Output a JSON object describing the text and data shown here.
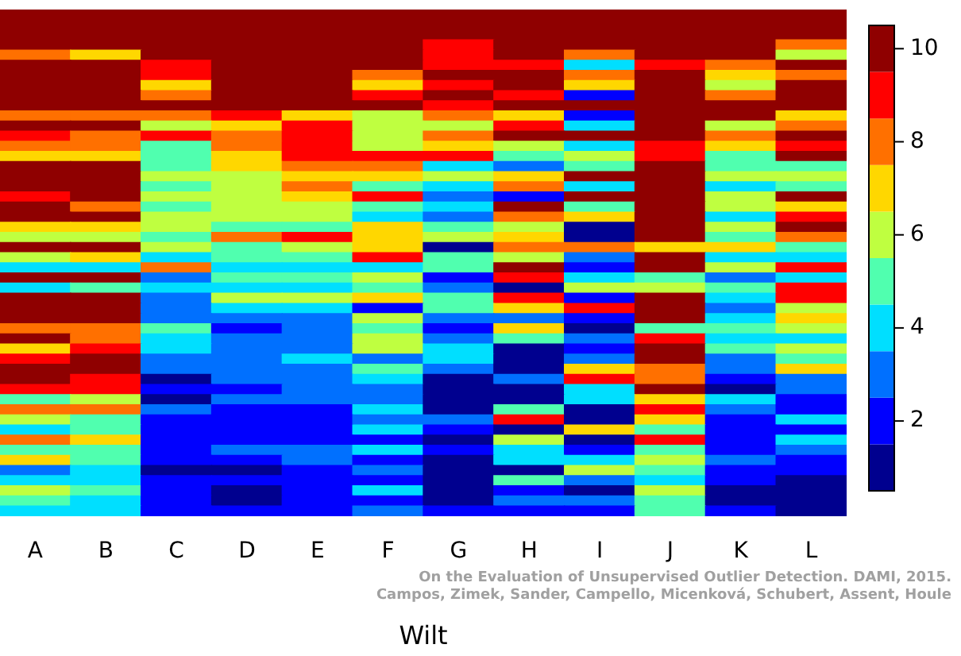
{
  "chart_data": {
    "type": "heatmap",
    "xlabel": "Wilt",
    "categories": [
      "A",
      "B",
      "C",
      "D",
      "E",
      "F",
      "G",
      "H",
      "I",
      "J",
      "K",
      "L"
    ],
    "y_categories": [
      null,
      null,
      null,
      null,
      null,
      null,
      null,
      null,
      null,
      null,
      null,
      null,
      null,
      null,
      null,
      null,
      null,
      null,
      null,
      null,
      null,
      null,
      null,
      null,
      null,
      null,
      null,
      null,
      null,
      null,
      null,
      null,
      null,
      null,
      null,
      null,
      null,
      null,
      null,
      null,
      null,
      null,
      null,
      null,
      null,
      null,
      null,
      null,
      null,
      null
    ],
    "cells": [
      [
        10,
        10,
        10,
        10,
        10,
        10,
        10,
        10,
        10,
        10,
        10,
        10
      ],
      [
        10,
        10,
        10,
        10,
        10,
        10,
        10,
        10,
        10,
        10,
        10,
        10
      ],
      [
        10,
        10,
        10,
        10,
        10,
        10,
        10,
        10,
        10,
        10,
        10,
        10
      ],
      [
        10,
        10,
        10,
        10,
        10,
        10,
        9,
        10,
        10,
        10,
        10,
        8
      ],
      [
        8,
        7,
        10,
        10,
        10,
        10,
        9,
        10,
        8,
        10,
        10,
        6
      ],
      [
        10,
        10,
        9,
        10,
        10,
        10,
        9,
        9,
        4,
        9,
        8,
        10
      ],
      [
        10,
        10,
        9,
        10,
        10,
        8,
        10,
        10,
        8,
        10,
        7,
        8
      ],
      [
        10,
        10,
        7,
        10,
        10,
        7,
        9,
        10,
        7,
        10,
        6,
        10
      ],
      [
        10,
        10,
        8,
        10,
        10,
        9,
        10,
        9,
        2,
        10,
        8,
        10
      ],
      [
        10,
        10,
        10,
        10,
        10,
        10,
        9,
        10,
        10,
        10,
        10,
        10
      ],
      [
        8,
        8,
        8,
        9,
        7,
        6,
        8,
        7,
        2,
        10,
        10,
        7
      ],
      [
        10,
        10,
        6,
        7,
        9,
        6,
        6,
        9,
        4,
        10,
        6,
        8
      ],
      [
        9,
        8,
        9,
        8,
        9,
        6,
        8,
        10,
        10,
        10,
        8,
        10
      ],
      [
        8,
        8,
        5,
        8,
        9,
        6,
        7,
        6,
        4,
        9,
        7,
        9
      ],
      [
        7,
        7,
        5,
        7,
        9,
        9,
        9,
        5,
        6,
        9,
        5,
        10
      ],
      [
        10,
        10,
        5,
        7,
        8,
        8,
        4,
        3,
        5,
        10,
        5,
        5
      ],
      [
        10,
        10,
        6,
        6,
        7,
        7,
        6,
        7,
        10,
        10,
        6,
        6
      ],
      [
        10,
        10,
        5,
        6,
        8,
        5,
        4,
        8,
        4,
        10,
        4,
        5
      ],
      [
        9,
        10,
        6,
        6,
        7,
        9,
        3,
        2,
        10,
        10,
        6,
        10
      ],
      [
        10,
        8,
        5,
        6,
        6,
        5,
        4,
        10,
        5,
        10,
        6,
        7
      ],
      [
        10,
        10,
        6,
        6,
        6,
        4,
        3,
        8,
        7,
        10,
        4,
        9
      ],
      [
        7,
        7,
        6,
        5,
        5,
        7,
        5,
        6,
        1,
        10,
        6,
        10
      ],
      [
        6,
        6,
        5,
        8,
        9,
        7,
        6,
        7,
        1,
        10,
        5,
        8
      ],
      [
        10,
        10,
        6,
        5,
        6,
        7,
        1,
        8,
        8,
        7,
        7,
        5
      ],
      [
        6,
        7,
        4,
        5,
        5,
        9,
        5,
        6,
        3,
        10,
        4,
        4
      ],
      [
        4,
        4,
        8,
        4,
        4,
        4,
        5,
        10,
        2,
        10,
        6,
        9
      ],
      [
        10,
        10,
        3,
        5,
        5,
        6,
        2,
        9,
        4,
        5,
        3,
        4
      ],
      [
        4,
        5,
        4,
        4,
        4,
        5,
        3,
        1,
        6,
        6,
        5,
        9
      ],
      [
        10,
        10,
        3,
        6,
        6,
        7,
        5,
        9,
        2,
        10,
        4,
        9
      ],
      [
        10,
        10,
        3,
        4,
        4,
        2,
        5,
        7,
        9,
        10,
        3,
        6
      ],
      [
        10,
        10,
        3,
        3,
        3,
        6,
        3,
        3,
        2,
        10,
        4,
        7
      ],
      [
        8,
        8,
        5,
        2,
        3,
        5,
        2,
        7,
        1,
        5,
        5,
        6
      ],
      [
        10,
        8,
        4,
        3,
        3,
        6,
        3,
        5,
        3,
        9,
        4,
        4
      ],
      [
        7,
        9,
        4,
        3,
        3,
        6,
        4,
        1,
        2,
        10,
        5,
        6
      ],
      [
        9,
        10,
        3,
        3,
        4,
        3,
        4,
        1,
        3,
        10,
        3,
        5
      ],
      [
        10,
        10,
        3,
        3,
        3,
        5,
        3,
        1,
        7,
        8,
        3,
        7
      ],
      [
        10,
        9,
        1,
        3,
        3,
        4,
        1,
        3,
        9,
        8,
        2,
        3
      ],
      [
        9,
        9,
        2,
        2,
        3,
        3,
        1,
        1,
        4,
        10,
        1,
        3
      ],
      [
        5,
        6,
        1,
        3,
        3,
        3,
        1,
        1,
        4,
        7,
        4,
        2
      ],
      [
        8,
        8,
        3,
        2,
        2,
        4,
        1,
        5,
        1,
        9,
        3,
        2
      ],
      [
        6,
        5,
        2,
        2,
        2,
        3,
        3,
        9,
        1,
        7,
        2,
        4
      ],
      [
        4,
        5,
        2,
        2,
        2,
        4,
        2,
        1,
        7,
        5,
        2,
        2
      ],
      [
        8,
        7,
        2,
        2,
        2,
        2,
        1,
        6,
        1,
        9,
        2,
        4
      ],
      [
        5,
        5,
        2,
        3,
        3,
        4,
        2,
        4,
        2,
        5,
        2,
        3
      ],
      [
        7,
        5,
        2,
        2,
        3,
        2,
        1,
        4,
        4,
        6,
        3,
        2
      ],
      [
        3,
        4,
        1,
        1,
        2,
        3,
        1,
        1,
        6,
        5,
        2,
        2
      ],
      [
        4,
        4,
        2,
        2,
        2,
        2,
        1,
        5,
        3,
        4,
        2,
        1
      ],
      [
        6,
        5,
        2,
        1,
        2,
        4,
        1,
        2,
        1,
        6,
        1,
        1
      ],
      [
        5,
        4,
        2,
        1,
        2,
        2,
        1,
        3,
        3,
        5,
        1,
        1
      ],
      [
        4,
        4,
        2,
        2,
        2,
        3,
        2,
        2,
        2,
        5,
        2,
        1
      ]
    ],
    "clim": [
      0.5,
      10.5
    ],
    "cticks": [
      2,
      4,
      6,
      8,
      10
    ],
    "tick_labels": "x",
    "annotations": [
      "On the Evaluation of Unsupervised Outlier Detection. DAMI, 2015.",
      "Campos, Zimek, Sander, Campello, Micenková, Schubert, Assent, Houle"
    ]
  }
}
